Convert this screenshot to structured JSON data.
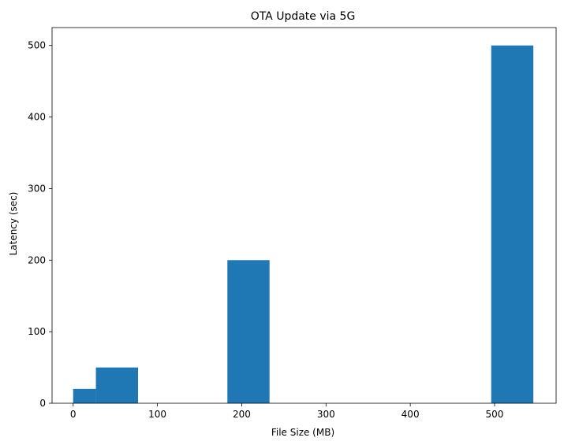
{
  "chart_data": {
    "type": "bar",
    "title": "OTA Update via 5G",
    "xlabel": "File Size (MB)",
    "ylabel": "Latency (sec)",
    "xlim": [
      -25,
      573
    ],
    "ylim": [
      0,
      525
    ],
    "xticks": [
      0,
      100,
      200,
      300,
      400,
      500
    ],
    "yticks": [
      0,
      100,
      200,
      300,
      400,
      500
    ],
    "grid": false,
    "bar_color": "#1f77b4",
    "bars": [
      {
        "x_start": 0,
        "x_end": 27,
        "value": 20
      },
      {
        "x_start": 27,
        "x_end": 77,
        "value": 50
      },
      {
        "x_start": 183,
        "x_end": 233,
        "value": 200
      },
      {
        "x_start": 496,
        "x_end": 546,
        "value": 500
      }
    ]
  }
}
